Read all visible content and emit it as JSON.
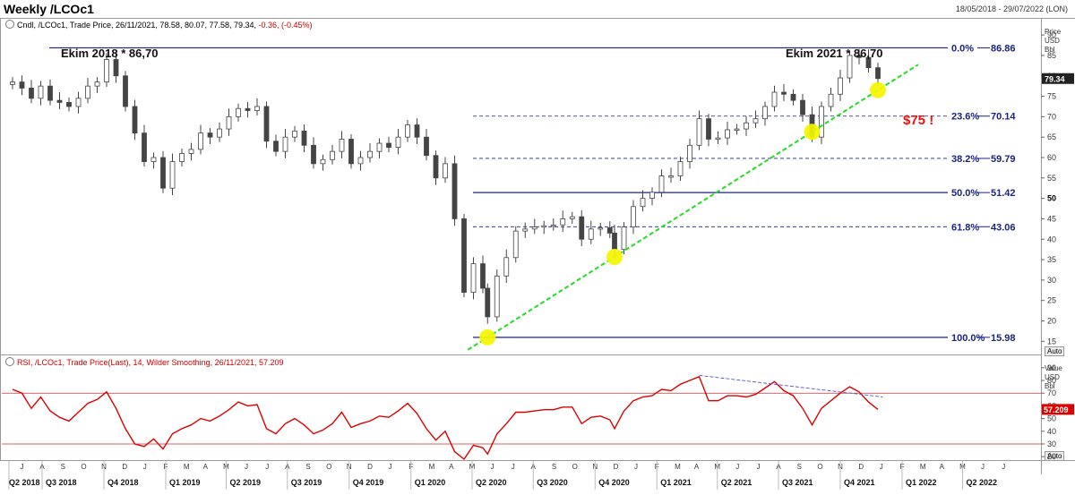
{
  "window": {
    "title": "Weekly /LCOc1",
    "date_range": "18/05/2018 - 29/07/2022 (LON)"
  },
  "price_panel": {
    "legend_prefix": "Cndl, /LCOc1, Trade Price, 26/11/2021, 78.58, 80.07, 77.58, 79.34,",
    "legend_change": "-0.36, (-0.45%)",
    "axis_unit_lines": [
      "Price",
      "USD",
      "Bbl"
    ],
    "current_price_tag": "79.34",
    "auto_label": "Auto"
  },
  "rsi_panel": {
    "legend": "RSI, /LCOc1, Trade Price(Last), 14, Wilder Smoothing, 26/11/2021, 57.209",
    "axis_unit_lines": [
      "Value",
      "USD",
      "Bbl"
    ],
    "current_value_tag": "57.209",
    "auto_label": "Auto"
  },
  "annotations": {
    "left_high": "Ekim 2018 * 86,70",
    "right_high": "Ekim 2021 * 86,70",
    "target": "$75 !"
  },
  "colors": {
    "candle": "#444444",
    "fib_line": "#1a237e",
    "trendline": "#22dd22",
    "highlight": "#f5f500",
    "rsi_line": "#dd0000",
    "rsi_level": "#cc3333",
    "target_text": "#ee1111"
  },
  "chart_data": [
    {
      "type": "candlestick",
      "title": "Weekly /LCOc1",
      "ylabel": "Price USD Bbl",
      "ylim": [
        12,
        92
      ],
      "y_ticks": [
        15,
        20,
        25,
        30,
        35,
        40,
        45,
        50,
        55,
        60,
        65,
        70,
        75,
        80,
        85,
        90
      ],
      "last_close": 79.34,
      "series": [
        {
          "name": "Cndl",
          "close_points": [
            [
              "2018-05-18",
              78.5
            ],
            [
              "2018-06-01",
              77.0
            ],
            [
              "2018-06-15",
              74.5
            ],
            [
              "2018-06-29",
              77.5
            ],
            [
              "2018-07-13",
              74.0
            ],
            [
              "2018-07-27",
              73.5
            ],
            [
              "2018-08-10",
              72.5
            ],
            [
              "2018-08-24",
              74.5
            ],
            [
              "2018-09-07",
              77.5
            ],
            [
              "2018-09-21",
              78.5
            ],
            [
              "2018-10-05",
              84.0
            ],
            [
              "2018-10-19",
              80.0
            ],
            [
              "2018-11-02",
              72.5
            ],
            [
              "2018-11-16",
              66.0
            ],
            [
              "2018-11-30",
              59.0
            ],
            [
              "2018-12-14",
              60.0
            ],
            [
              "2018-12-28",
              52.5
            ],
            [
              "2019-01-11",
              59.0
            ],
            [
              "2019-01-25",
              61.0
            ],
            [
              "2019-02-08",
              62.0
            ],
            [
              "2019-02-22",
              66.0
            ],
            [
              "2019-03-08",
              65.0
            ],
            [
              "2019-03-22",
              67.0
            ],
            [
              "2019-04-05",
              70.0
            ],
            [
              "2019-04-19",
              72.0
            ],
            [
              "2019-05-03",
              71.5
            ],
            [
              "2019-05-17",
              72.5
            ],
            [
              "2019-05-31",
              64.0
            ],
            [
              "2019-06-14",
              61.5
            ],
            [
              "2019-06-28",
              65.0
            ],
            [
              "2019-07-12",
              66.5
            ],
            [
              "2019-07-26",
              63.0
            ],
            [
              "2019-08-09",
              58.5
            ],
            [
              "2019-08-23",
              59.5
            ],
            [
              "2019-09-06",
              61.5
            ],
            [
              "2019-09-20",
              64.5
            ],
            [
              "2019-10-04",
              58.5
            ],
            [
              "2019-10-18",
              60.0
            ],
            [
              "2019-11-01",
              61.5
            ],
            [
              "2019-11-15",
              63.5
            ],
            [
              "2019-11-29",
              62.5
            ],
            [
              "2019-12-13",
              65.0
            ],
            [
              "2019-12-27",
              68.0
            ],
            [
              "2020-01-10",
              65.0
            ],
            [
              "2020-01-24",
              60.5
            ],
            [
              "2020-02-07",
              55.0
            ],
            [
              "2020-02-21",
              58.5
            ],
            [
              "2020-03-06",
              45.0
            ],
            [
              "2020-03-20",
              27.0
            ],
            [
              "2020-04-03",
              34.0
            ],
            [
              "2020-04-17",
              28.0
            ],
            [
              "2020-04-24",
              21.0
            ],
            [
              "2020-05-08",
              31.0
            ],
            [
              "2020-05-22",
              35.5
            ],
            [
              "2020-06-05",
              42.0
            ],
            [
              "2020-06-19",
              42.5
            ],
            [
              "2020-07-03",
              43.0
            ],
            [
              "2020-07-17",
              43.3
            ],
            [
              "2020-07-31",
              43.5
            ],
            [
              "2020-08-14",
              45.0
            ],
            [
              "2020-08-28",
              45.5
            ],
            [
              "2020-09-11",
              40.0
            ],
            [
              "2020-09-25",
              42.5
            ],
            [
              "2020-10-09",
              42.8
            ],
            [
              "2020-10-23",
              41.5
            ],
            [
              "2020-10-30",
              37.5
            ],
            [
              "2020-11-13",
              43.0
            ],
            [
              "2020-11-27",
              48.0
            ],
            [
              "2020-12-11",
              50.0
            ],
            [
              "2020-12-25",
              51.5
            ],
            [
              "2021-01-08",
              55.5
            ],
            [
              "2021-01-22",
              55.5
            ],
            [
              "2021-02-05",
              59.0
            ],
            [
              "2021-02-19",
              63.0
            ],
            [
              "2021-03-05",
              69.5
            ],
            [
              "2021-03-19",
              64.5
            ],
            [
              "2021-04-02",
              64.8
            ],
            [
              "2021-04-16",
              66.8
            ],
            [
              "2021-04-30",
              67.0
            ],
            [
              "2021-05-14",
              68.5
            ],
            [
              "2021-05-28",
              69.5
            ],
            [
              "2021-06-11",
              72.5
            ],
            [
              "2021-06-25",
              76.0
            ],
            [
              "2021-07-09",
              75.5
            ],
            [
              "2021-07-23",
              74.0
            ],
            [
              "2021-08-06",
              70.5
            ],
            [
              "2021-08-20",
              65.0
            ],
            [
              "2021-09-03",
              72.5
            ],
            [
              "2021-09-17",
              75.5
            ],
            [
              "2021-10-01",
              79.5
            ],
            [
              "2021-10-15",
              85.0
            ],
            [
              "2021-10-29",
              84.5
            ],
            [
              "2021-11-12",
              82.0
            ],
            [
              "2021-11-26",
              79.34
            ]
          ]
        }
      ],
      "fibonacci_levels": [
        {
          "label": "0.0%",
          "value": "86.86"
        },
        {
          "label": "23.6%",
          "value": "70.14"
        },
        {
          "label": "38.2%",
          "value": "59.79"
        },
        {
          "label": "50.0%",
          "value": "51.42"
        },
        {
          "label": "61.8%",
          "value": "43.06"
        },
        {
          "label": "100.0%",
          "value": "15.98"
        }
      ],
      "fib_levels_numeric": [
        86.86,
        70.14,
        59.79,
        51.42,
        43.06,
        15.98
      ],
      "trendline_touches": [
        [
          "2020-04-24",
          15.98
        ],
        [
          "2020-10-30",
          35.5
        ],
        [
          "2021-08-20",
          65.0
        ],
        [
          "2021-11-26",
          76.5
        ]
      ]
    },
    {
      "type": "line",
      "title": "RSI, /LCOc1, Trade Price(Last), 14, Wilder Smoothing",
      "ylabel": "Value USD Bbl",
      "ylim": [
        18,
        92
      ],
      "y_ticks": [
        20,
        30,
        40,
        50,
        60,
        70,
        80,
        90
      ],
      "reference_levels": [
        70,
        30
      ],
      "last_value": 57.209,
      "series": [
        {
          "name": "RSI",
          "points": [
            [
              "2018-05-18",
              73
            ],
            [
              "2018-06-01",
              70
            ],
            [
              "2018-06-15",
              58
            ],
            [
              "2018-06-29",
              67
            ],
            [
              "2018-07-13",
              56
            ],
            [
              "2018-07-27",
              51
            ],
            [
              "2018-08-10",
              48
            ],
            [
              "2018-08-24",
              55
            ],
            [
              "2018-09-07",
              62
            ],
            [
              "2018-09-21",
              65
            ],
            [
              "2018-10-05",
              71
            ],
            [
              "2018-10-19",
              58
            ],
            [
              "2018-11-02",
              42
            ],
            [
              "2018-11-16",
              30
            ],
            [
              "2018-11-30",
              28
            ],
            [
              "2018-12-14",
              34
            ],
            [
              "2018-12-28",
              26
            ],
            [
              "2019-01-11",
              38
            ],
            [
              "2019-01-25",
              42
            ],
            [
              "2019-02-08",
              45
            ],
            [
              "2019-02-22",
              50
            ],
            [
              "2019-03-08",
              48
            ],
            [
              "2019-03-22",
              52
            ],
            [
              "2019-04-05",
              57
            ],
            [
              "2019-04-19",
              63
            ],
            [
              "2019-05-03",
              60
            ],
            [
              "2019-05-17",
              61
            ],
            [
              "2019-05-31",
              42
            ],
            [
              "2019-06-14",
              38
            ],
            [
              "2019-06-28",
              46
            ],
            [
              "2019-07-12",
              50
            ],
            [
              "2019-07-26",
              45
            ],
            [
              "2019-08-09",
              38
            ],
            [
              "2019-08-23",
              41
            ],
            [
              "2019-09-06",
              46
            ],
            [
              "2019-09-20",
              55
            ],
            [
              "2019-10-04",
              43
            ],
            [
              "2019-10-18",
              46
            ],
            [
              "2019-11-01",
              48
            ],
            [
              "2019-11-15",
              52
            ],
            [
              "2019-11-29",
              51
            ],
            [
              "2019-12-13",
              56
            ],
            [
              "2019-12-27",
              62
            ],
            [
              "2020-01-10",
              54
            ],
            [
              "2020-01-24",
              42
            ],
            [
              "2020-02-07",
              33
            ],
            [
              "2020-02-21",
              40
            ],
            [
              "2020-03-06",
              24
            ],
            [
              "2020-03-20",
              18
            ],
            [
              "2020-04-03",
              29
            ],
            [
              "2020-04-17",
              27
            ],
            [
              "2020-04-24",
              22
            ],
            [
              "2020-05-08",
              38
            ],
            [
              "2020-05-22",
              46
            ],
            [
              "2020-06-05",
              55
            ],
            [
              "2020-06-19",
              55
            ],
            [
              "2020-07-03",
              56
            ],
            [
              "2020-07-17",
              57
            ],
            [
              "2020-07-31",
              57
            ],
            [
              "2020-08-14",
              59
            ],
            [
              "2020-08-28",
              59
            ],
            [
              "2020-09-11",
              46
            ],
            [
              "2020-09-25",
              51
            ],
            [
              "2020-10-09",
              52
            ],
            [
              "2020-10-23",
              49
            ],
            [
              "2020-10-30",
              42
            ],
            [
              "2020-11-13",
              56
            ],
            [
              "2020-11-27",
              64
            ],
            [
              "2020-12-11",
              67
            ],
            [
              "2020-12-25",
              68
            ],
            [
              "2021-01-08",
              73
            ],
            [
              "2021-01-22",
              72
            ],
            [
              "2021-02-05",
              77
            ],
            [
              "2021-02-19",
              80
            ],
            [
              "2021-03-05",
              83
            ],
            [
              "2021-03-19",
              64
            ],
            [
              "2021-04-02",
              64
            ],
            [
              "2021-04-16",
              68
            ],
            [
              "2021-04-30",
              68
            ],
            [
              "2021-05-14",
              67
            ],
            [
              "2021-05-28",
              69
            ],
            [
              "2021-06-11",
              74
            ],
            [
              "2021-06-25",
              79
            ],
            [
              "2021-07-09",
              72
            ],
            [
              "2021-07-23",
              68
            ],
            [
              "2021-08-06",
              58
            ],
            [
              "2021-08-20",
              45
            ],
            [
              "2021-09-03",
              58
            ],
            [
              "2021-09-17",
              64
            ],
            [
              "2021-10-01",
              70
            ],
            [
              "2021-10-15",
              75
            ],
            [
              "2021-10-29",
              71
            ],
            [
              "2021-11-12",
              63
            ],
            [
              "2021-11-26",
              57.209
            ]
          ]
        }
      ],
      "divergence_line": [
        [
          "2021-03-05",
          84
        ],
        [
          "2021-12-03",
          67
        ]
      ]
    }
  ],
  "x_axis": {
    "month_ticks": [
      "J",
      "A",
      "S",
      "O",
      "N",
      "D",
      "J",
      "F",
      "M",
      "A",
      "M",
      "J",
      "J",
      "A",
      "S",
      "O",
      "N",
      "D",
      "J",
      "F",
      "M",
      "A",
      "M",
      "J",
      "J",
      "A",
      "S",
      "O",
      "N",
      "D",
      "J",
      "F",
      "M",
      "A",
      "M",
      "J",
      "J",
      "A",
      "S",
      "O",
      "N",
      "D",
      "J",
      "F",
      "M",
      "A",
      "M",
      "J",
      "J"
    ],
    "month_start": "2018-06-01",
    "quarter_labels": [
      {
        "text": "Q2 2018",
        "date": "2018-04-01"
      },
      {
        "text": "Q3 2018",
        "date": "2018-07-01"
      },
      {
        "text": "Q4 2018",
        "date": "2018-10-01"
      },
      {
        "text": "Q1 2019",
        "date": "2019-01-01"
      },
      {
        "text": "Q2 2019",
        "date": "2019-04-01"
      },
      {
        "text": "Q3 2019",
        "date": "2019-07-01"
      },
      {
        "text": "Q4 2019",
        "date": "2019-10-01"
      },
      {
        "text": "Q1 2020",
        "date": "2020-01-01"
      },
      {
        "text": "Q2 2020",
        "date": "2020-04-01"
      },
      {
        "text": "Q3 2020",
        "date": "2020-07-01"
      },
      {
        "text": "Q4 2020",
        "date": "2020-10-01"
      },
      {
        "text": "Q1 2021",
        "date": "2021-01-01"
      },
      {
        "text": "Q2 2021",
        "date": "2021-04-01"
      },
      {
        "text": "Q3 2021",
        "date": "2021-07-01"
      },
      {
        "text": "Q4 2021",
        "date": "2021-10-01"
      },
      {
        "text": "Q1 2022",
        "date": "2022-01-01"
      },
      {
        "text": "Q2 2022",
        "date": "2022-04-01"
      }
    ]
  }
}
